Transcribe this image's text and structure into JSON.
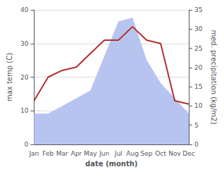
{
  "chart_data": {
    "type": "line",
    "xlabel": "date (month)",
    "ylabel": "max temp (C)",
    "y2label": "med. precipitation (kg/m2)",
    "categories": [
      "Jan",
      "Feb",
      "Mar",
      "Apr",
      "May",
      "Jun",
      "Jul",
      "Aug",
      "Sep",
      "Oct",
      "Nov",
      "Dec"
    ],
    "series": [
      {
        "type": "area",
        "axis": "y2",
        "color": "#b8c4f0",
        "values": [
          8,
          8,
          10,
          12,
          14,
          23,
          32,
          33,
          22,
          16,
          12,
          8
        ]
      },
      {
        "type": "line",
        "color": "#b03030",
        "values": [
          13,
          20,
          22,
          23,
          27,
          31,
          31,
          35,
          31,
          30,
          13,
          12
        ]
      }
    ],
    "ylim": [
      0,
      40
    ],
    "yticks": [
      0,
      10,
      20,
      30,
      40
    ],
    "y2lim": [
      0,
      35
    ],
    "y2ticks": [
      0,
      5,
      10,
      15,
      20,
      25,
      30,
      35
    ],
    "grid": true
  }
}
